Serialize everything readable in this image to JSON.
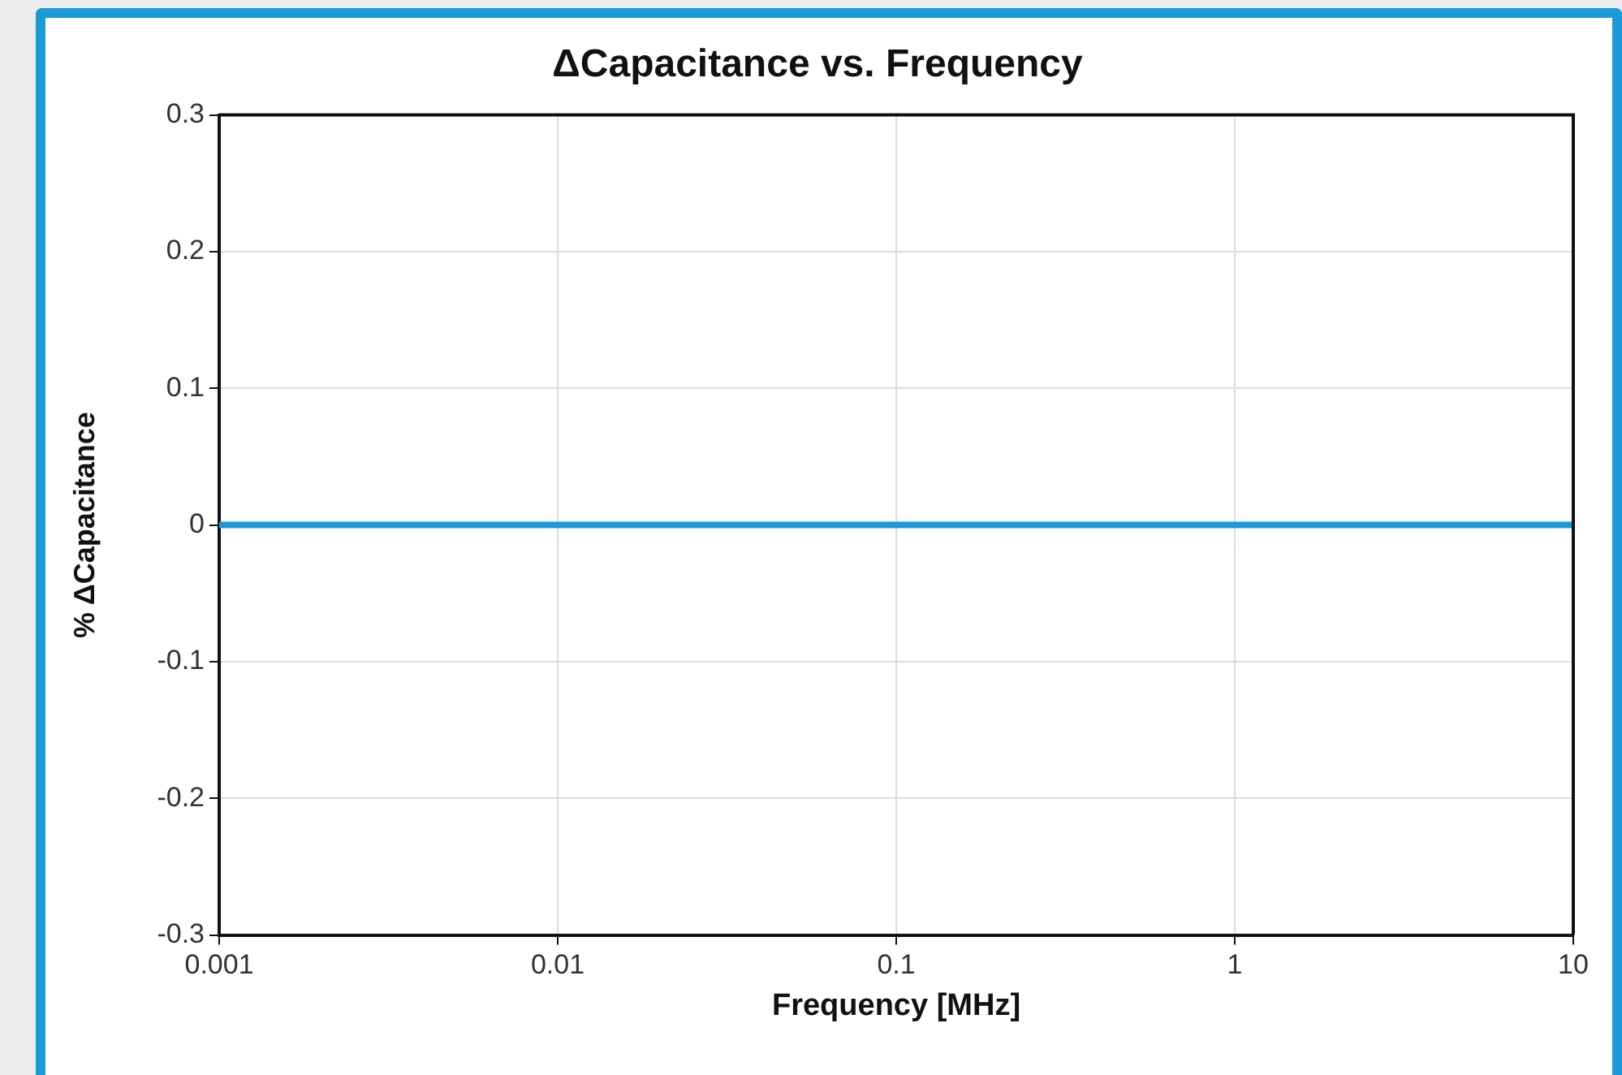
{
  "chart_data": {
    "type": "line",
    "title": "ΔCapacitance vs. Frequency",
    "xlabel": "Frequency [MHz]",
    "ylabel": "% ΔCapacitance",
    "log": "x",
    "xlim": [
      0.001,
      10
    ],
    "xticks": [
      0.001,
      0.01,
      0.1,
      1,
      10
    ],
    "ylim": [
      -0.3,
      0.3
    ],
    "yticks": [
      -0.3,
      -0.2,
      -0.1,
      0,
      0.1,
      0.2,
      0.3
    ],
    "grid": true,
    "series": [
      {
        "color": "#1a9ad6",
        "x": [
          0.001,
          10
        ],
        "values": [
          0,
          0
        ]
      }
    ]
  }
}
